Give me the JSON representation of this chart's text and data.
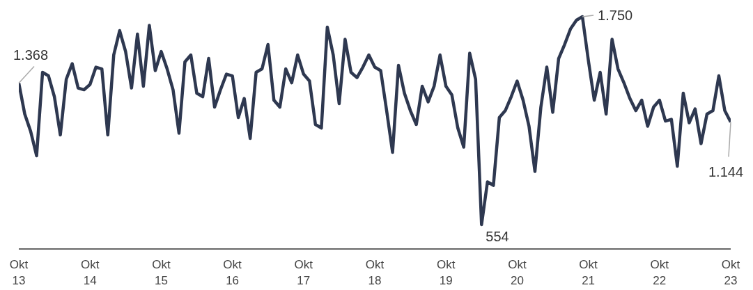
{
  "chart_data": {
    "type": "line",
    "categories": [
      "Okt\n13",
      null,
      null,
      null,
      null,
      null,
      null,
      null,
      null,
      null,
      null,
      null,
      "Okt\n14",
      null,
      null,
      null,
      null,
      null,
      null,
      null,
      null,
      null,
      null,
      null,
      "Okt\n15",
      null,
      null,
      null,
      null,
      null,
      null,
      null,
      null,
      null,
      null,
      null,
      "Okt\n16",
      null,
      null,
      null,
      null,
      null,
      null,
      null,
      null,
      null,
      null,
      null,
      "Okt\n17",
      null,
      null,
      null,
      null,
      null,
      null,
      null,
      null,
      null,
      null,
      null,
      "Okt\n18",
      null,
      null,
      null,
      null,
      null,
      null,
      null,
      null,
      null,
      null,
      null,
      "Okt\n19",
      null,
      null,
      null,
      null,
      null,
      null,
      null,
      null,
      null,
      null,
      null,
      "Okt\n20",
      null,
      null,
      null,
      null,
      null,
      null,
      null,
      null,
      null,
      null,
      null,
      "Okt\n21",
      null,
      null,
      null,
      null,
      null,
      null,
      null,
      null,
      null,
      null,
      null,
      "Okt\n22",
      null,
      null,
      null,
      null,
      null,
      null,
      null,
      null,
      null,
      null,
      null,
      "Okt\n23"
    ],
    "series": [
      {
        "color": "#2e3850",
        "values": [
          1368,
          1190,
          1090,
          950,
          1430,
          1410,
          1290,
          1070,
          1390,
          1480,
          1340,
          1330,
          1360,
          1460,
          1450,
          1070,
          1530,
          1670,
          1550,
          1340,
          1650,
          1350,
          1700,
          1440,
          1550,
          1450,
          1330,
          1080,
          1490,
          1530,
          1310,
          1290,
          1510,
          1230,
          1330,
          1420,
          1410,
          1170,
          1280,
          1050,
          1430,
          1450,
          1590,
          1270,
          1230,
          1450,
          1370,
          1530,
          1420,
          1380,
          1130,
          1110,
          1690,
          1530,
          1250,
          1620,
          1430,
          1400,
          1460,
          1530,
          1460,
          1440,
          1210,
          970,
          1470,
          1310,
          1210,
          1130,
          1350,
          1260,
          1350,
          1530,
          1350,
          1300,
          1110,
          1000,
          1540,
          1390,
          554,
          800,
          780,
          1170,
          1210,
          1290,
          1380,
          1270,
          1120,
          860,
          1230,
          1460,
          1200,
          1510,
          1590,
          1680,
          1730,
          1750,
          1500,
          1270,
          1430,
          1190,
          1620,
          1450,
          1370,
          1280,
          1210,
          1270,
          1120,
          1230,
          1270,
          1150,
          1160,
          890,
          1310,
          1140,
          1220,
          1020,
          1190,
          1210,
          1410,
          1210,
          1144
        ],
        "value_labels": [
          "1.368",
          null,
          null,
          null,
          null,
          null,
          null,
          null,
          null,
          null,
          null,
          null,
          null,
          null,
          null,
          null,
          null,
          null,
          null,
          null,
          null,
          null,
          null,
          null,
          null,
          null,
          null,
          null,
          null,
          null,
          null,
          null,
          null,
          null,
          null,
          null,
          null,
          null,
          null,
          null,
          null,
          null,
          null,
          null,
          null,
          null,
          null,
          null,
          null,
          null,
          null,
          null,
          null,
          null,
          null,
          null,
          null,
          null,
          null,
          null,
          null,
          null,
          null,
          null,
          null,
          null,
          null,
          null,
          null,
          null,
          null,
          null,
          null,
          null,
          null,
          null,
          null,
          null,
          "554",
          null,
          null,
          null,
          null,
          null,
          null,
          null,
          null,
          null,
          null,
          null,
          null,
          null,
          null,
          null,
          null,
          "1.750",
          null,
          null,
          null,
          null,
          null,
          null,
          null,
          null,
          null,
          null,
          null,
          null,
          null,
          null,
          null,
          null,
          null,
          null,
          null,
          null,
          null,
          null,
          null,
          null,
          "1.144"
        ]
      }
    ],
    "grid": false,
    "legend": false,
    "marker": "none",
    "line_style": "solid",
    "tick_labels": "x"
  }
}
